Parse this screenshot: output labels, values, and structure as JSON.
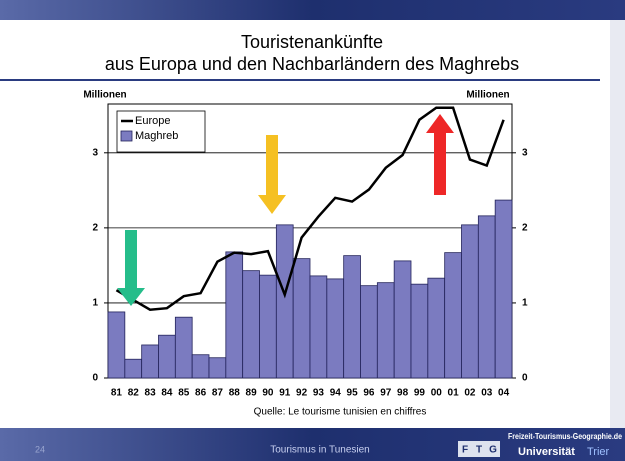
{
  "chart_data": {
    "type": "bar",
    "title": "Touristenankünfte",
    "subtitle": "aus Europa und den Nachbarländern des Maghrebs",
    "ylabel": "Millionen",
    "y2label": "Millionen",
    "source": "Quelle: Le tourisme tunisien en chiffres",
    "categories": [
      "81",
      "82",
      "83",
      "84",
      "85",
      "86",
      "87",
      "88",
      "89",
      "90",
      "91",
      "92",
      "93",
      "94",
      "95",
      "96",
      "97",
      "98",
      "99",
      "00",
      "01",
      "02",
      "03",
      "04"
    ],
    "series": [
      {
        "name": "Europe",
        "type": "line",
        "color": "#000000",
        "axis": "y2",
        "values": [
          1.17,
          1.04,
          0.91,
          0.93,
          1.09,
          1.13,
          1.55,
          1.67,
          1.65,
          1.69,
          1.11,
          1.87,
          2.15,
          2.4,
          2.35,
          2.51,
          2.8,
          2.97,
          3.44,
          3.6,
          3.6,
          2.91,
          2.83,
          3.44
        ]
      },
      {
        "name": "Maghreb",
        "type": "bar",
        "color": "#7b7bc0",
        "values": [
          0.88,
          0.25,
          0.44,
          0.57,
          0.81,
          0.31,
          0.27,
          1.68,
          1.43,
          1.37,
          2.04,
          1.59,
          1.36,
          1.32,
          1.63,
          1.23,
          1.27,
          1.56,
          1.25,
          1.33,
          1.67,
          2.04,
          2.16,
          2.37
        ]
      }
    ],
    "ylim": [
      0,
      3.65
    ],
    "yticks": [
      0,
      1,
      2,
      3
    ],
    "y2lim": [
      0,
      3.65
    ],
    "y2ticks": [
      0,
      1,
      2,
      3
    ],
    "grid": true,
    "legend": "top-left"
  },
  "slide": {
    "page_number": "24",
    "footer": "Tourismus in Tunesien",
    "logo_site": "Freizeit-Tourismus-Geographie.de",
    "logo_letters": [
      "F",
      "T",
      "G"
    ],
    "logo_university": "Universität",
    "logo_city": "Trier"
  }
}
